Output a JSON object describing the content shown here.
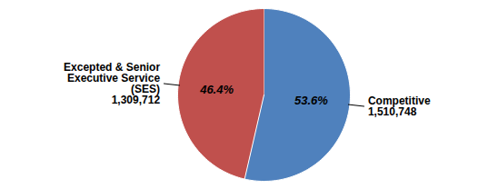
{
  "chart_data": {
    "type": "pie",
    "categories": [
      "Competitive",
      "Excepted & Senior Executive Service (SES)"
    ],
    "values": [
      53.6,
      46.4
    ],
    "value_labels": [
      "53.6%",
      "46.4%"
    ],
    "counts": [
      1510748,
      1309712
    ],
    "count_labels": [
      "1,510,748",
      "1,309,712"
    ],
    "colors": [
      "#4F81BD",
      "#C0504D"
    ],
    "data_labels": true
  }
}
